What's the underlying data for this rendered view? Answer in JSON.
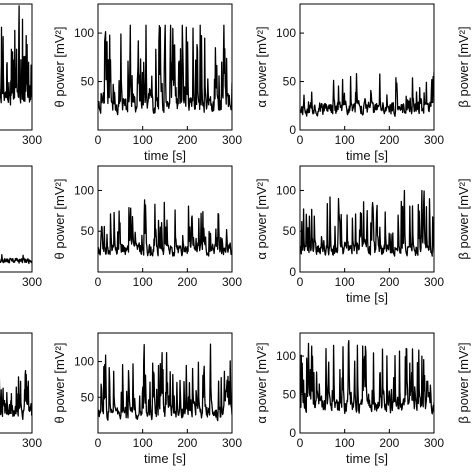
{
  "figure": {
    "x_label": "time [s]",
    "xlim": [
      0,
      300
    ],
    "x_ticks": [
      0,
      100,
      200,
      300
    ],
    "colors": {
      "line": "#000000",
      "axis": "#000000",
      "background": "#ffffff"
    }
  },
  "chart_data": [
    {
      "id": "r1c0",
      "type": "line",
      "row": 0,
      "col": 0,
      "ylabel": "",
      "xlabel": "",
      "x_ticks": [
        300
      ],
      "y_ticks": [],
      "ylim": [
        0,
        130
      ],
      "partial": "left",
      "series": [
        {
          "seed": 11,
          "base": 32,
          "noise": 10,
          "spike_prob": 0.28,
          "spike_max": 80,
          "low": 5,
          "high": 128
        }
      ]
    },
    {
      "id": "r1c1",
      "type": "line",
      "row": 0,
      "col": 1,
      "ylabel": "θ power [mV²]",
      "xlabel": "time [s]",
      "x_ticks": [
        0,
        100,
        200,
        300
      ],
      "y_ticks": [
        50,
        100
      ],
      "ylim": [
        0,
        130
      ],
      "series": [
        {
          "seed": 23,
          "base": 26,
          "noise": 12,
          "spike_prob": 0.32,
          "spike_max": 80,
          "low": 8,
          "high": 108
        }
      ]
    },
    {
      "id": "r1c2",
      "type": "line",
      "row": 0,
      "col": 2,
      "ylabel": "α power [mV²]",
      "xlabel": "time [s]",
      "x_ticks": [
        0,
        100,
        200,
        300
      ],
      "y_ticks": [
        0,
        50,
        100
      ],
      "ylim": [
        0,
        130
      ],
      "series": [
        {
          "seed": 37,
          "base": 22,
          "noise": 9,
          "spike_prob": 0.14,
          "spike_max": 35,
          "low": 5,
          "high": 60
        }
      ]
    },
    {
      "id": "r1c3",
      "type": "line",
      "row": 0,
      "col": 3,
      "ylabel": "β power [mV²]",
      "xlabel": "",
      "x_ticks": [],
      "y_ticks": [],
      "ylim": [
        0,
        130
      ],
      "partial": "right",
      "series": []
    },
    {
      "id": "r2c0",
      "type": "line",
      "row": 1,
      "col": 0,
      "ylabel": "",
      "xlabel": "",
      "x_ticks": [
        300
      ],
      "y_ticks": [],
      "ylim": [
        0,
        130
      ],
      "partial": "left",
      "series": [
        {
          "seed": 41,
          "base": 14,
          "noise": 4,
          "spike_prob": 0.05,
          "spike_max": 8,
          "low": 5,
          "high": 30
        }
      ]
    },
    {
      "id": "r2c1",
      "type": "line",
      "row": 1,
      "col": 1,
      "ylabel": "θ power [mV²]",
      "xlabel": "",
      "x_ticks": [
        0,
        100,
        200,
        300
      ],
      "y_ticks": [
        50,
        100
      ],
      "ylim": [
        0,
        130
      ],
      "series": [
        {
          "seed": 53,
          "base": 27,
          "noise": 10,
          "spike_prob": 0.18,
          "spike_max": 55,
          "low": 8,
          "high": 95
        }
      ]
    },
    {
      "id": "r2c2",
      "type": "line",
      "row": 1,
      "col": 2,
      "ylabel": "α power [mV²]",
      "xlabel": "time [s]",
      "x_ticks": [
        0,
        100,
        200,
        300
      ],
      "y_ticks": [
        0,
        50,
        100
      ],
      "ylim": [
        0,
        130
      ],
      "series": [
        {
          "seed": 67,
          "base": 27,
          "noise": 10,
          "spike_prob": 0.2,
          "spike_max": 60,
          "low": 8,
          "high": 100
        }
      ]
    },
    {
      "id": "r2c3",
      "type": "line",
      "row": 1,
      "col": 3,
      "ylabel": "β power [mV²]",
      "xlabel": "",
      "x_ticks": [],
      "y_ticks": [],
      "ylim": [
        0,
        130
      ],
      "partial": "right",
      "series": []
    },
    {
      "id": "r3c0",
      "type": "line",
      "row": 2,
      "col": 0,
      "ylabel": "",
      "xlabel": "",
      "x_ticks": [
        300
      ],
      "y_ticks": [],
      "ylim": [
        0,
        130
      ],
      "partial": "left",
      "series": [
        {
          "seed": 71,
          "base": 28,
          "noise": 12,
          "spike_prob": 0.22,
          "spike_max": 50,
          "low": 5,
          "high": 100
        }
      ]
    },
    {
      "id": "r3c1",
      "type": "line",
      "row": 2,
      "col": 1,
      "ylabel": "θ power [mV²]",
      "xlabel": "time [s]",
      "x_ticks": [
        0,
        100,
        200,
        300
      ],
      "y_ticks": [
        50,
        100
      ],
      "ylim": [
        0,
        140
      ],
      "series": [
        {
          "seed": 83,
          "base": 28,
          "noise": 13,
          "spike_prob": 0.26,
          "spike_max": 75,
          "low": 5,
          "high": 132
        }
      ]
    },
    {
      "id": "r3c2",
      "type": "line",
      "row": 2,
      "col": 2,
      "ylabel": "α power [mV²]",
      "xlabel": "time [s]",
      "x_ticks": [
        0,
        100,
        200,
        300
      ],
      "y_ticks": [
        0,
        50,
        100
      ],
      "ylim": [
        0,
        130
      ],
      "series": [
        {
          "seed": 97,
          "base": 35,
          "noise": 13,
          "spike_prob": 0.25,
          "spike_max": 75,
          "low": 5,
          "high": 120
        }
      ]
    },
    {
      "id": "r3c3",
      "type": "line",
      "row": 2,
      "col": 3,
      "ylabel": "β power [mV²]",
      "xlabel": "",
      "x_ticks": [],
      "y_ticks": [],
      "ylim": [
        0,
        130
      ],
      "partial": "right",
      "series": []
    }
  ]
}
